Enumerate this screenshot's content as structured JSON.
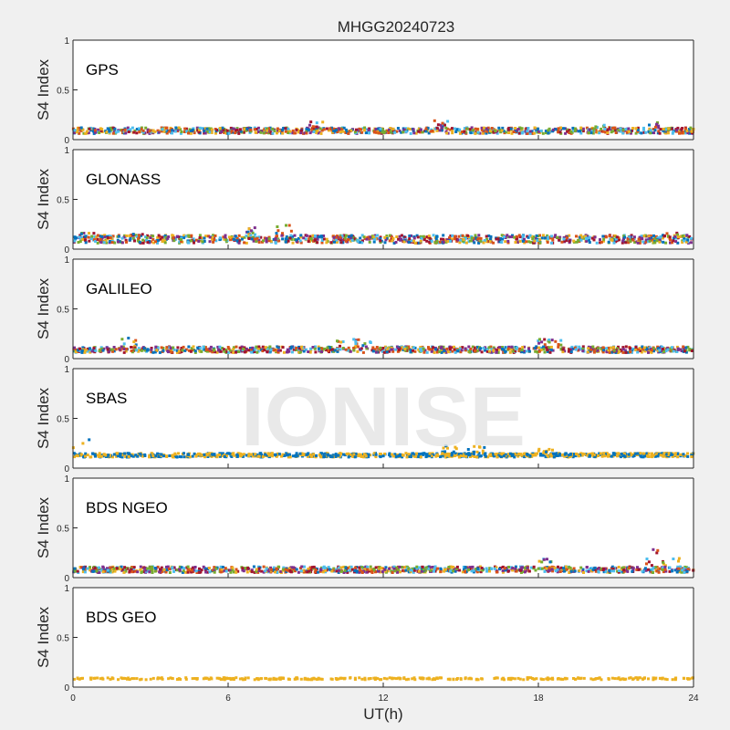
{
  "title": "MHGG20240723",
  "watermark": "IONISE",
  "colors": {
    "figure_bg": "#f0f0f0",
    "axes_bg": "#ffffff",
    "watermark": "#e6e6e6",
    "series_palette": [
      "#0072BD",
      "#D95319",
      "#EDB120",
      "#7E2F8E",
      "#77AC30",
      "#4DBEEE",
      "#A2142F"
    ]
  },
  "chart_data": [
    {
      "type": "scatter",
      "label": "GPS",
      "ylabel": "S4 Index",
      "xlim": [
        0,
        24
      ],
      "ylim": [
        0,
        1
      ],
      "yticks": [
        0,
        0.5,
        1
      ],
      "xticks": [],
      "baseline": 0.09,
      "spread": 0.03,
      "bursts": [
        [
          9.5,
          0.18
        ],
        [
          14.3,
          0.2
        ],
        [
          20.5,
          0.15
        ],
        [
          22.3,
          0.18
        ]
      ]
    },
    {
      "type": "scatter",
      "label": "GLONASS",
      "ylabel": "S4 Index",
      "xlim": [
        0,
        24
      ],
      "ylim": [
        0,
        1
      ],
      "yticks": [
        0,
        0.5,
        1
      ],
      "xticks": [],
      "baseline": 0.1,
      "spread": 0.04,
      "bursts": [
        [
          0.5,
          0.17
        ],
        [
          2.5,
          0.17
        ],
        [
          6.8,
          0.22
        ],
        [
          8.2,
          0.24
        ],
        [
          23.2,
          0.18
        ]
      ]
    },
    {
      "type": "scatter",
      "label": "GALILEO",
      "ylabel": "S4 Index",
      "xlim": [
        0,
        24
      ],
      "ylim": [
        0,
        1
      ],
      "yticks": [
        0,
        0.5,
        1
      ],
      "xticks": [],
      "baseline": 0.09,
      "spread": 0.03,
      "bursts": [
        [
          2.2,
          0.21
        ],
        [
          10.5,
          0.18
        ],
        [
          11.2,
          0.21
        ],
        [
          18.2,
          0.2
        ],
        [
          18.9,
          0.21
        ]
      ]
    },
    {
      "type": "scatter",
      "label": "SBAS",
      "ylabel": "S4 Index",
      "xlim": [
        0,
        24
      ],
      "ylim": [
        0,
        1
      ],
      "yticks": [
        0,
        0.5,
        1
      ],
      "xticks": [],
      "baseline": 0.13,
      "spread": 0.02,
      "bursts": [
        [
          0.3,
          0.3
        ],
        [
          14.5,
          0.23
        ],
        [
          15.6,
          0.22
        ],
        [
          18.3,
          0.2
        ]
      ]
    },
    {
      "type": "scatter",
      "label": "BDS NGEO",
      "ylabel": "S4 Index",
      "xlim": [
        0,
        24
      ],
      "ylim": [
        0,
        1
      ],
      "yticks": [
        0,
        0.5,
        1
      ],
      "xticks": [],
      "baseline": 0.08,
      "spread": 0.03,
      "bursts": [
        [
          18.2,
          0.19
        ],
        [
          22.5,
          0.29
        ],
        [
          23.2,
          0.2
        ]
      ]
    },
    {
      "type": "scatter",
      "label": "BDS GEO",
      "ylabel": "S4 Index",
      "xlabel": "UT(h)",
      "xlim": [
        0,
        24
      ],
      "ylim": [
        0,
        1
      ],
      "yticks": [
        0,
        0.5,
        1
      ],
      "xticks": [
        0,
        6,
        12,
        18,
        24
      ],
      "baseline": 0.085,
      "spread": 0.01,
      "bursts": [
        [
          11.8,
          0.1
        ]
      ]
    }
  ]
}
